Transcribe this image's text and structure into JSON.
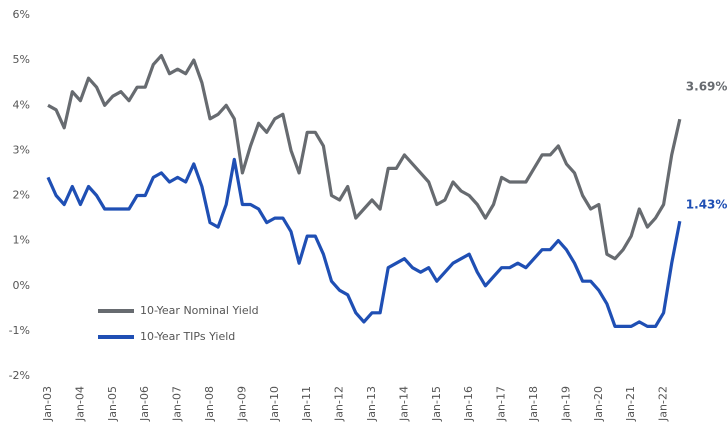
{
  "chart_data": {
    "type": "line",
    "categories": [
      "Jan-03",
      null,
      null,
      null,
      "Jan-04",
      null,
      null,
      null,
      "Jan-05",
      null,
      null,
      null,
      "Jan-06",
      null,
      null,
      null,
      "Jan-07",
      null,
      null,
      null,
      "Jan-08",
      null,
      null,
      null,
      "Jan-09",
      null,
      null,
      null,
      "Jan-10",
      null,
      null,
      null,
      "Jan-11",
      null,
      null,
      null,
      "Jan-12",
      null,
      null,
      null,
      "Jan-13",
      null,
      null,
      null,
      "Jan-14",
      null,
      null,
      null,
      "Jan-15",
      null,
      null,
      null,
      "Jan-16",
      null,
      null,
      null,
      "Jan-17",
      null,
      null,
      null,
      "Jan-18",
      null,
      null,
      null,
      "Jan-19",
      null,
      null,
      null,
      "Jan-20",
      null,
      null,
      null,
      "Jan-21",
      null,
      null,
      null,
      "Jan-22",
      null,
      null
    ],
    "series": [
      {
        "name": "10-Year Nominal Yield",
        "color": "#676b70",
        "values": [
          4.0,
          3.9,
          3.5,
          4.3,
          4.1,
          4.6,
          4.4,
          4.0,
          4.2,
          4.3,
          4.1,
          4.4,
          4.4,
          4.9,
          5.1,
          4.7,
          4.8,
          4.7,
          5.0,
          4.5,
          3.7,
          3.8,
          4.0,
          3.7,
          2.5,
          3.1,
          3.6,
          3.4,
          3.7,
          3.8,
          3.0,
          2.5,
          3.4,
          3.4,
          3.1,
          2.0,
          1.9,
          2.2,
          1.5,
          1.7,
          1.9,
          1.7,
          2.6,
          2.6,
          2.9,
          2.7,
          2.5,
          2.3,
          1.8,
          1.9,
          2.3,
          2.1,
          2.0,
          1.8,
          1.5,
          1.8,
          2.4,
          2.3,
          2.3,
          2.3,
          2.6,
          2.9,
          2.9,
          3.1,
          2.7,
          2.5,
          2.0,
          1.7,
          1.8,
          0.7,
          0.6,
          0.8,
          1.1,
          1.7,
          1.3,
          1.5,
          1.8,
          2.9,
          3.69
        ],
        "value_labels": [
          null,
          null,
          null,
          null,
          null,
          null,
          null,
          null,
          null,
          null,
          null,
          null,
          null,
          null,
          null,
          null,
          null,
          null,
          null,
          null,
          null,
          null,
          null,
          null,
          null,
          null,
          null,
          null,
          null,
          null,
          null,
          null,
          null,
          null,
          null,
          null,
          null,
          null,
          null,
          null,
          null,
          null,
          null,
          null,
          null,
          null,
          null,
          null,
          null,
          null,
          null,
          null,
          null,
          null,
          null,
          null,
          null,
          null,
          null,
          null,
          null,
          null,
          null,
          null,
          null,
          null,
          null,
          null,
          null,
          null,
          null,
          null,
          null,
          null,
          null,
          null,
          null,
          null,
          "3.69%"
        ]
      },
      {
        "name": "10-Year TIPs Yield",
        "color": "#1f4fb4",
        "values": [
          2.4,
          2.0,
          1.8,
          2.2,
          1.8,
          2.2,
          2.0,
          1.7,
          1.7,
          1.7,
          1.7,
          2.0,
          2.0,
          2.4,
          2.5,
          2.3,
          2.4,
          2.3,
          2.7,
          2.2,
          1.4,
          1.3,
          1.8,
          2.8,
          1.8,
          1.8,
          1.7,
          1.4,
          1.5,
          1.5,
          1.2,
          0.5,
          1.1,
          1.1,
          0.7,
          0.1,
          -0.1,
          -0.2,
          -0.6,
          -0.8,
          -0.6,
          -0.6,
          0.4,
          0.5,
          0.6,
          0.4,
          0.3,
          0.4,
          0.1,
          0.3,
          0.5,
          0.6,
          0.7,
          0.3,
          0.0,
          0.2,
          0.4,
          0.4,
          0.5,
          0.4,
          0.6,
          0.8,
          0.8,
          1.0,
          0.8,
          0.5,
          0.1,
          0.1,
          -0.1,
          -0.4,
          -0.9,
          -0.9,
          -0.9,
          -0.8,
          -0.9,
          -0.9,
          -0.6,
          0.5,
          1.43
        ],
        "value_labels": [
          null,
          null,
          null,
          null,
          null,
          null,
          null,
          null,
          null,
          null,
          null,
          null,
          null,
          null,
          null,
          null,
          null,
          null,
          null,
          null,
          null,
          null,
          null,
          null,
          null,
          null,
          null,
          null,
          null,
          null,
          null,
          null,
          null,
          null,
          null,
          null,
          null,
          null,
          null,
          null,
          null,
          null,
          null,
          null,
          null,
          null,
          null,
          null,
          null,
          null,
          null,
          null,
          null,
          null,
          null,
          null,
          null,
          null,
          null,
          null,
          null,
          null,
          null,
          null,
          null,
          null,
          null,
          null,
          null,
          null,
          null,
          null,
          null,
          null,
          null,
          null,
          null,
          null,
          "1.43%"
        ]
      }
    ],
    "ylim": [
      -2,
      6
    ],
    "yticks": [
      {
        "value": -2,
        "label": "-2%"
      },
      {
        "value": -1,
        "label": "-1%"
      },
      {
        "value": 0,
        "label": "0%"
      },
      {
        "value": 1,
        "label": "1%"
      },
      {
        "value": 2,
        "label": "2%"
      },
      {
        "value": 3,
        "label": "3%"
      },
      {
        "value": 4,
        "label": "4%"
      },
      {
        "value": 5,
        "label": "5%"
      },
      {
        "value": 6,
        "label": "6%"
      }
    ],
    "grid": false,
    "legend": "lower-left"
  }
}
